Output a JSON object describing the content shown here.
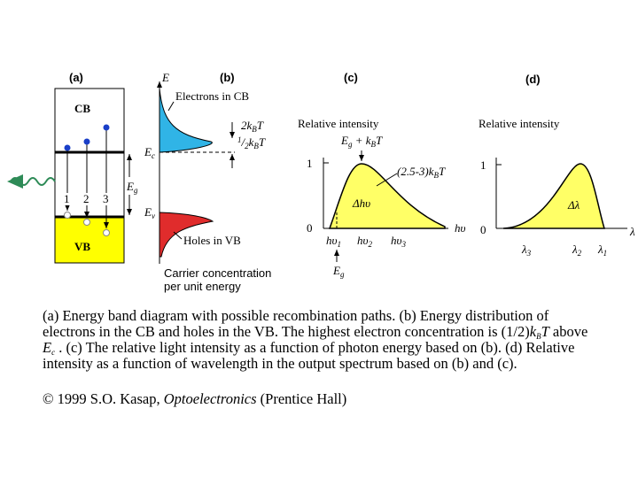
{
  "panels": {
    "a": {
      "label": "(a)",
      "cb": "CB",
      "vb": "VB",
      "paths": [
        "1",
        "2",
        "3"
      ],
      "eg": [
        "E",
        "g"
      ]
    },
    "b": {
      "label": "(b)",
      "axis": "E",
      "electrons": "Electrons in CB",
      "two_kbt": [
        "2k",
        "B",
        "T"
      ],
      "half_kbt": [
        "1",
        "/",
        "2",
        "k",
        "B",
        "T"
      ],
      "ec": [
        "E",
        "c"
      ],
      "ev": [
        "E",
        "v"
      ],
      "holes": "Holes in VB",
      "xaxis": [
        "Carrier concentration",
        "per unit energy"
      ]
    },
    "c": {
      "label": "(c)",
      "ylabel": "Relative intensity",
      "peak": [
        "E",
        "g",
        " + k",
        "B",
        "T"
      ],
      "one": "1",
      "zero": "0",
      "width": [
        "(2.5-3)k",
        "B",
        "T"
      ],
      "delta": "Δhυ",
      "xaxis": "hυ",
      "hv": [
        [
          "hυ",
          "1"
        ],
        [
          "hυ",
          "2"
        ],
        [
          "hυ",
          "3"
        ]
      ],
      "eg": [
        "E",
        "g"
      ]
    },
    "d": {
      "label": "(d)",
      "ylabel": "Relative intensity",
      "one": "1",
      "zero": "0",
      "delta": "Δλ",
      "xaxis": "λ",
      "lambdas": [
        [
          "λ",
          "3"
        ],
        [
          "λ",
          "2"
        ],
        [
          "λ",
          "1"
        ]
      ]
    }
  },
  "caption": [
    [
      "(a) Energy band diagram with possible recombination paths. (b) Energy distribution of"
    ],
    [
      "electrons in the CB and holes in the VB. The highest electron concentration is (1/2)",
      "k",
      "B",
      "T",
      "  above"
    ],
    [
      "E",
      "c",
      " . (c) The relative light intensity as a function of photon energy based on (b).  (d) Relative"
    ],
    [
      "intensity as a function of wavelength in the output spectrum based on (b) and (c)."
    ]
  ],
  "copyright": [
    "© 1999 S.O. Kasap, ",
    "Optoelectronics",
    " (Prentice Hall)"
  ]
}
